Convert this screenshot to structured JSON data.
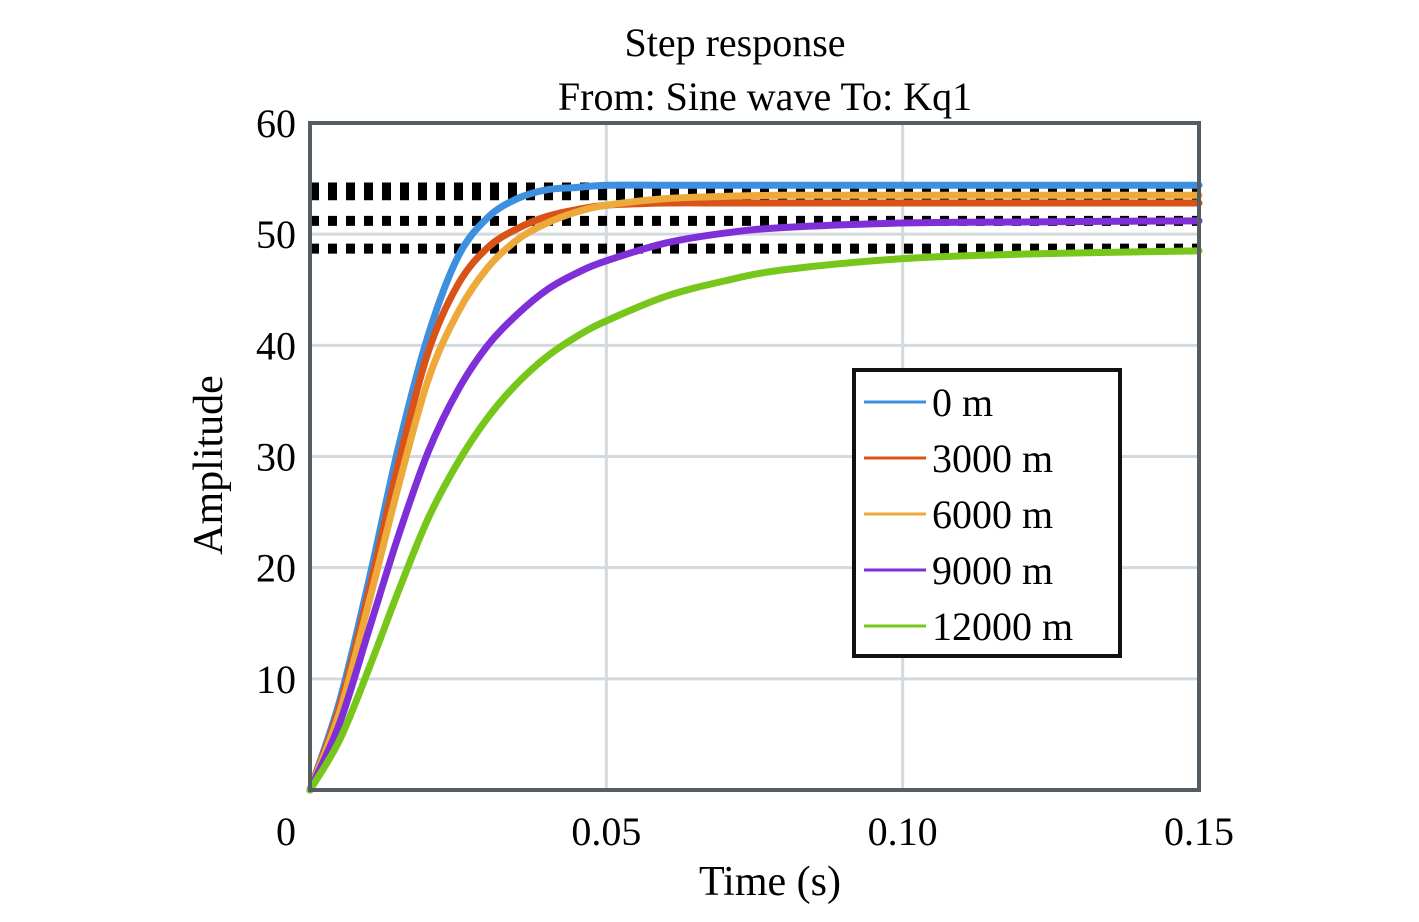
{
  "chart_data": {
    "type": "line",
    "title": "Step response",
    "subtitle": "From: Sine wave  To: Kq1",
    "xlabel": "Time (s)",
    "ylabel": "Amplitude",
    "xlim": [
      0,
      0.15
    ],
    "ylim": [
      0,
      60
    ],
    "xticks": [
      0,
      0.05,
      0.1,
      0.15
    ],
    "xtick_labels": [
      "0",
      "0.05",
      "0.10",
      "0.15"
    ],
    "yticks": [
      10,
      20,
      30,
      40,
      50,
      60
    ],
    "ytick_labels": [
      "10",
      "20",
      "30",
      "40",
      "50",
      "60"
    ],
    "grid": true,
    "legend_position": "center-right",
    "reference_lines": [
      {
        "y": 54.2,
        "style": "dotted"
      },
      {
        "y": 53.5,
        "style": "dotted"
      },
      {
        "y": 51.2,
        "style": "dotted"
      },
      {
        "y": 48.7,
        "style": "dotted"
      }
    ],
    "series": [
      {
        "name": "0 m",
        "color": "#3d8fe0",
        "x": [
          0,
          0.005,
          0.01,
          0.015,
          0.02,
          0.025,
          0.03,
          0.035,
          0.04,
          0.045,
          0.05,
          0.06,
          0.07,
          0.08,
          0.1,
          0.12,
          0.15
        ],
        "y": [
          0,
          8,
          19,
          31,
          41,
          48,
          51.5,
          53.2,
          54,
          54.2,
          54.4,
          54.4,
          54.4,
          54.4,
          54.4,
          54.4,
          54.4
        ]
      },
      {
        "name": "3000 m",
        "color": "#d95319",
        "x": [
          0,
          0.005,
          0.01,
          0.015,
          0.02,
          0.025,
          0.03,
          0.035,
          0.04,
          0.045,
          0.05,
          0.06,
          0.07,
          0.08,
          0.1,
          0.12,
          0.15
        ],
        "y": [
          0,
          7.5,
          18,
          29.5,
          39.5,
          45.5,
          48.8,
          50.5,
          51.6,
          52.2,
          52.6,
          52.8,
          52.8,
          52.8,
          52.8,
          52.8,
          52.8
        ]
      },
      {
        "name": "6000 m",
        "color": "#eda93a",
        "x": [
          0,
          0.005,
          0.01,
          0.015,
          0.02,
          0.025,
          0.03,
          0.035,
          0.04,
          0.045,
          0.05,
          0.06,
          0.07,
          0.08,
          0.1,
          0.12,
          0.15
        ],
        "y": [
          0,
          7,
          17,
          27.5,
          37,
          43,
          47,
          49.5,
          51,
          52,
          52.6,
          53.2,
          53.4,
          53.5,
          53.5,
          53.5,
          53.5
        ]
      },
      {
        "name": "9000 m",
        "color": "#7e2fd8",
        "x": [
          0,
          0.005,
          0.01,
          0.015,
          0.02,
          0.025,
          0.03,
          0.035,
          0.04,
          0.045,
          0.05,
          0.06,
          0.07,
          0.08,
          0.1,
          0.12,
          0.15
        ],
        "y": [
          0,
          6,
          14.5,
          23,
          30.5,
          36,
          40,
          42.8,
          45,
          46.5,
          47.6,
          49.2,
          50.1,
          50.6,
          51,
          51.1,
          51.2
        ]
      },
      {
        "name": "12000 m",
        "color": "#77c61a",
        "x": [
          0,
          0.005,
          0.01,
          0.015,
          0.02,
          0.025,
          0.03,
          0.035,
          0.04,
          0.045,
          0.05,
          0.06,
          0.07,
          0.08,
          0.1,
          0.12,
          0.15
        ],
        "y": [
          0,
          4.5,
          11,
          18,
          24.5,
          29.5,
          33.5,
          36.6,
          39,
          40.8,
          42.2,
          44.4,
          45.8,
          46.8,
          47.8,
          48.2,
          48.5
        ]
      }
    ]
  }
}
